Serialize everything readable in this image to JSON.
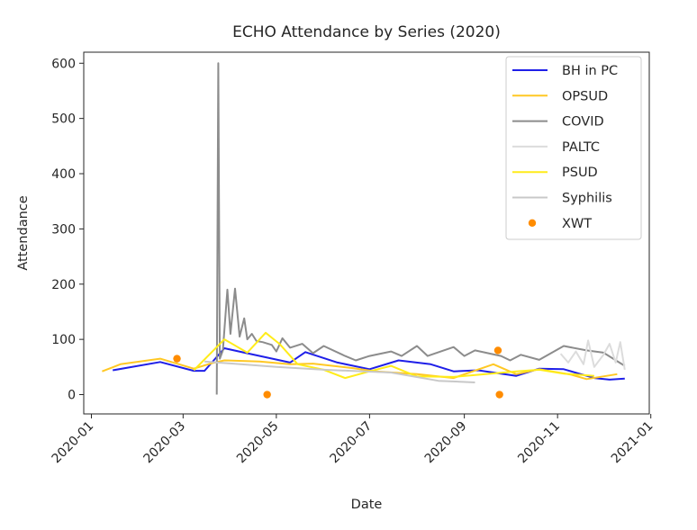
{
  "chart_data": {
    "type": "line",
    "title": "ECHO Attendance by Series (2020)",
    "xlabel": "Date",
    "ylabel": "Attendance",
    "xlim": [
      "2019-12-27",
      "2020-12-31"
    ],
    "ylim": [
      -35,
      620
    ],
    "x_ticks": [
      "2020-01",
      "2020-03",
      "2020-05",
      "2020-07",
      "2020-09",
      "2020-11",
      "2021-01"
    ],
    "y_ticks": [
      0,
      100,
      200,
      300,
      400,
      500,
      600
    ],
    "legend_position": "top-right",
    "series": [
      {
        "name": "BH in PC",
        "kind": "line",
        "color": "#1f1fe8",
        "points": [
          [
            "2020-01-15",
            44
          ],
          [
            "2020-02-15",
            59
          ],
          [
            "2020-03-08",
            43
          ],
          [
            "2020-03-15",
            43
          ],
          [
            "2020-03-28",
            84
          ],
          [
            "2020-04-10",
            76
          ],
          [
            "2020-05-10",
            58
          ],
          [
            "2020-05-20",
            77
          ],
          [
            "2020-06-10",
            58
          ],
          [
            "2020-07-01",
            46
          ],
          [
            "2020-07-20",
            62
          ],
          [
            "2020-08-10",
            55
          ],
          [
            "2020-08-25",
            42
          ],
          [
            "2020-09-10",
            44
          ],
          [
            "2020-10-05",
            34
          ],
          [
            "2020-10-20",
            47
          ],
          [
            "2020-11-05",
            46
          ],
          [
            "2020-11-25",
            30
          ],
          [
            "2020-12-05",
            27
          ],
          [
            "2020-12-15",
            29
          ]
        ]
      },
      {
        "name": "OPSUD",
        "kind": "line",
        "color": "#ffc824",
        "points": [
          [
            "2020-01-08",
            42
          ],
          [
            "2020-01-20",
            55
          ],
          [
            "2020-02-15",
            65
          ],
          [
            "2020-03-08",
            47
          ],
          [
            "2020-03-20",
            57
          ],
          [
            "2020-03-28",
            62
          ],
          [
            "2020-04-20",
            60
          ],
          [
            "2020-05-10",
            55
          ],
          [
            "2020-05-25",
            56
          ],
          [
            "2020-06-20",
            48
          ],
          [
            "2020-07-05",
            42
          ],
          [
            "2020-08-01",
            37
          ],
          [
            "2020-08-25",
            30
          ],
          [
            "2020-09-20",
            55
          ],
          [
            "2020-10-05",
            37
          ],
          [
            "2020-10-20",
            46
          ],
          [
            "2020-11-10",
            36
          ],
          [
            "2020-11-20",
            28
          ],
          [
            "2020-12-10",
            37
          ]
        ]
      },
      {
        "name": "COVID",
        "kind": "line",
        "color": "#8c8c8c",
        "points": [
          [
            "2020-03-23",
            0
          ],
          [
            "2020-03-24",
            600
          ],
          [
            "2020-03-25",
            65
          ],
          [
            "2020-03-27",
            80
          ],
          [
            "2020-03-30",
            190
          ],
          [
            "2020-04-01",
            110
          ],
          [
            "2020-04-04",
            192
          ],
          [
            "2020-04-07",
            105
          ],
          [
            "2020-04-10",
            138
          ],
          [
            "2020-04-12",
            100
          ],
          [
            "2020-04-15",
            110
          ],
          [
            "2020-04-18",
            97
          ],
          [
            "2020-04-22",
            95
          ],
          [
            "2020-04-28",
            90
          ],
          [
            "2020-05-01",
            78
          ],
          [
            "2020-05-05",
            102
          ],
          [
            "2020-05-10",
            85
          ],
          [
            "2020-05-18",
            92
          ],
          [
            "2020-05-25",
            75
          ],
          [
            "2020-06-01",
            88
          ],
          [
            "2020-06-15",
            70
          ],
          [
            "2020-06-22",
            62
          ],
          [
            "2020-07-01",
            70
          ],
          [
            "2020-07-15",
            78
          ],
          [
            "2020-07-22",
            70
          ],
          [
            "2020-08-01",
            88
          ],
          [
            "2020-08-08",
            70
          ],
          [
            "2020-08-25",
            86
          ],
          [
            "2020-09-01",
            70
          ],
          [
            "2020-09-08",
            80
          ],
          [
            "2020-09-25",
            70
          ],
          [
            "2020-10-01",
            62
          ],
          [
            "2020-10-08",
            72
          ],
          [
            "2020-10-20",
            63
          ],
          [
            "2020-11-05",
            88
          ],
          [
            "2020-11-20",
            80
          ],
          [
            "2020-12-01",
            76
          ],
          [
            "2020-12-15",
            52
          ]
        ]
      },
      {
        "name": "PALTC",
        "kind": "line",
        "color": "#dcdcdc",
        "points": [
          [
            "2020-11-03",
            74
          ],
          [
            "2020-11-08",
            58
          ],
          [
            "2020-11-13",
            78
          ],
          [
            "2020-11-18",
            55
          ],
          [
            "2020-11-21",
            98
          ],
          [
            "2020-11-25",
            50
          ],
          [
            "2020-12-01",
            72
          ],
          [
            "2020-12-05",
            92
          ],
          [
            "2020-12-09",
            58
          ],
          [
            "2020-12-12",
            95
          ],
          [
            "2020-12-15",
            45
          ]
        ]
      },
      {
        "name": "PSUD",
        "kind": "line",
        "color": "#ffec1a",
        "points": [
          [
            "2020-03-08",
            44
          ],
          [
            "2020-03-28",
            100
          ],
          [
            "2020-04-12",
            76
          ],
          [
            "2020-04-24",
            112
          ],
          [
            "2020-05-03",
            92
          ],
          [
            "2020-05-15",
            55
          ],
          [
            "2020-06-01",
            45
          ],
          [
            "2020-06-15",
            30
          ],
          [
            "2020-07-01",
            42
          ],
          [
            "2020-07-15",
            52
          ],
          [
            "2020-08-01",
            33
          ],
          [
            "2020-08-25",
            32
          ],
          [
            "2020-09-15",
            37
          ],
          [
            "2020-10-05",
            42
          ],
          [
            "2020-10-20",
            45
          ],
          [
            "2020-11-05",
            38
          ],
          [
            "2020-11-25",
            34
          ]
        ]
      },
      {
        "name": "Syphilis",
        "kind": "line",
        "color": "#c8c8c8",
        "points": [
          [
            "2020-03-15",
            60
          ],
          [
            "2020-05-01",
            50
          ],
          [
            "2020-06-01",
            45
          ],
          [
            "2020-07-15",
            40
          ],
          [
            "2020-08-15",
            25
          ],
          [
            "2020-09-08",
            22
          ]
        ]
      },
      {
        "name": "XWT",
        "kind": "scatter",
        "color": "#ff8c00",
        "points": [
          [
            "2020-02-26",
            65
          ],
          [
            "2020-04-25",
            0
          ],
          [
            "2020-09-23",
            80
          ],
          [
            "2020-09-24",
            0
          ]
        ]
      }
    ]
  }
}
